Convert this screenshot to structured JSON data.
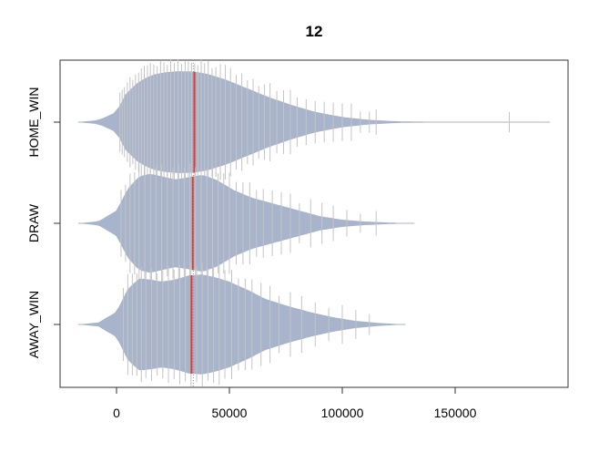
{
  "chart_data": {
    "type": "beanplot",
    "title": "12",
    "xlabel": "",
    "ylabel": "",
    "xlim": [
      -25000,
      200000
    ],
    "x_ticks": [
      0,
      50000,
      100000,
      150000
    ],
    "x_tick_labels": [
      "0",
      "50000",
      "100000",
      "150000"
    ],
    "overall_mean": 34000,
    "categories": [
      "HOME_WIN",
      "DRAW",
      "AWAY_WIN"
    ],
    "series": [
      {
        "name": "HOME_WIN",
        "mean": 34500,
        "range": [
          -17000,
          192000
        ],
        "density": [
          [
            -17000,
            0
          ],
          [
            -8000,
            0.04
          ],
          [
            0,
            0.2
          ],
          [
            4000,
            0.55
          ],
          [
            10000,
            0.8
          ],
          [
            16000,
            0.93
          ],
          [
            22000,
            0.98
          ],
          [
            28000,
            1.0
          ],
          [
            34000,
            0.99
          ],
          [
            40000,
            0.95
          ],
          [
            48000,
            0.84
          ],
          [
            58000,
            0.66
          ],
          [
            68000,
            0.48
          ],
          [
            78000,
            0.33
          ],
          [
            88000,
            0.2
          ],
          [
            100000,
            0.1
          ],
          [
            112000,
            0.045
          ],
          [
            125000,
            0.015
          ],
          [
            140000,
            0.007
          ],
          [
            160000,
            0.003
          ],
          [
            192000,
            0
          ]
        ],
        "observations": [
          1500,
          2500,
          3500,
          4800,
          6000,
          7200,
          8400,
          9800,
          11000,
          12300,
          13700,
          15000,
          16500,
          18000,
          19500,
          21000,
          22500,
          24000,
          25600,
          27200,
          28800,
          30400,
          31800,
          33200,
          34600,
          36000,
          37500,
          39000,
          40600,
          42300,
          44000,
          46000,
          48200,
          50500,
          53000,
          55500,
          58000,
          60500,
          63000,
          65500,
          68000,
          71000,
          74000,
          77000,
          80000,
          84000,
          88000,
          92000,
          96000,
          100000,
          104000,
          108000,
          112000,
          115000,
          174000
        ]
      },
      {
        "name": "DRAW",
        "mean": 33800,
        "range": [
          -17000,
          132000
        ],
        "density": [
          [
            -17000,
            0
          ],
          [
            -8000,
            0.04
          ],
          [
            0,
            0.25
          ],
          [
            5000,
            0.68
          ],
          [
            10000,
            0.92
          ],
          [
            15000,
            0.97
          ],
          [
            20000,
            0.92
          ],
          [
            26000,
            0.86
          ],
          [
            32000,
            0.9
          ],
          [
            38000,
            0.95
          ],
          [
            44000,
            0.86
          ],
          [
            52000,
            0.65
          ],
          [
            60000,
            0.5
          ],
          [
            70000,
            0.38
          ],
          [
            80000,
            0.26
          ],
          [
            90000,
            0.14
          ],
          [
            100000,
            0.07
          ],
          [
            110000,
            0.035
          ],
          [
            120000,
            0.015
          ],
          [
            132000,
            0
          ]
        ],
        "observations": [
          2000,
          4000,
          6000,
          8000,
          10000,
          12500,
          15000,
          17500,
          20000,
          22500,
          25000,
          27500,
          30000,
          32500,
          35000,
          37500,
          40000,
          42500,
          45000,
          47500,
          50000,
          53000,
          56000,
          59000,
          62000,
          65000,
          69000,
          73000,
          77000,
          81000,
          86000,
          91000,
          96000,
          102000,
          108000,
          115000
        ]
      },
      {
        "name": "AWAY_WIN",
        "mean": 33200,
        "range": [
          -17000,
          128000
        ],
        "density": [
          [
            -17000,
            0
          ],
          [
            -8000,
            0.04
          ],
          [
            0,
            0.25
          ],
          [
            5000,
            0.7
          ],
          [
            10000,
            0.9
          ],
          [
            15000,
            0.88
          ],
          [
            20000,
            0.84
          ],
          [
            26000,
            0.88
          ],
          [
            32000,
            0.96
          ],
          [
            38000,
            0.98
          ],
          [
            44000,
            0.92
          ],
          [
            50000,
            0.84
          ],
          [
            58000,
            0.68
          ],
          [
            66000,
            0.5
          ],
          [
            76000,
            0.36
          ],
          [
            86000,
            0.24
          ],
          [
            96000,
            0.14
          ],
          [
            106000,
            0.07
          ],
          [
            116000,
            0.03
          ],
          [
            128000,
            0
          ]
        ],
        "observations": [
          3000,
          5000,
          7000,
          9000,
          11000,
          13000,
          15500,
          18000,
          20500,
          23000,
          25500,
          28000,
          30500,
          33000,
          35500,
          38000,
          40500,
          43000,
          45500,
          48000,
          51000,
          54000,
          57000,
          60000,
          64000,
          68000,
          72000,
          77000,
          82000,
          88000,
          94000,
          100000,
          106000,
          112000
        ]
      }
    ]
  }
}
